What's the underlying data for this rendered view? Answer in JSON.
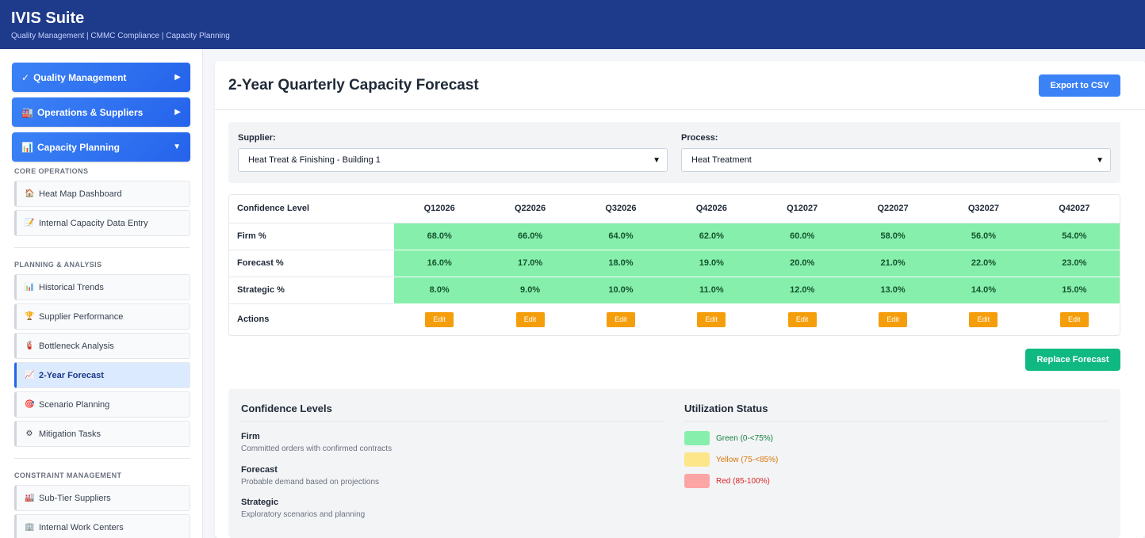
{
  "app": {
    "title": "IVIS Suite",
    "subtitle": "Quality Management | CMMC Compliance | Capacity Planning"
  },
  "sidebar": {
    "main_items": [
      {
        "icon": "✓",
        "label": "Quality Management",
        "arrow": "▶"
      },
      {
        "icon": "🏭",
        "label": "Operations & Suppliers",
        "arrow": "▶"
      },
      {
        "icon": "📊",
        "label": "Capacity Planning",
        "arrow": "▼"
      }
    ],
    "sections": [
      {
        "title": "CORE OPERATIONS",
        "items": [
          {
            "icon": "🏠",
            "label": "Heat Map Dashboard"
          },
          {
            "icon": "📝",
            "label": "Internal Capacity Data Entry"
          }
        ]
      },
      {
        "title": "PLANNING & ANALYSIS",
        "items": [
          {
            "icon": "📊",
            "label": "Historical Trends"
          },
          {
            "icon": "🏆",
            "label": "Supplier Performance"
          },
          {
            "icon": "🧯",
            "label": "Bottleneck Analysis"
          },
          {
            "icon": "📈",
            "label": "2-Year Forecast"
          },
          {
            "icon": "🎯",
            "label": "Scenario Planning"
          },
          {
            "icon": "⚙",
            "label": "Mitigation Tasks"
          }
        ]
      },
      {
        "title": "CONSTRAINT MANAGEMENT",
        "items": [
          {
            "icon": "🏭",
            "label": "Sub-Tier Suppliers"
          },
          {
            "icon": "🏢",
            "label": "Internal Work Centers"
          }
        ]
      }
    ]
  },
  "main": {
    "title": "2-Year Quarterly Capacity Forecast",
    "export_label": "Export to CSV",
    "replace_label": "Replace Forecast",
    "filters": {
      "supplier_label": "Supplier:",
      "supplier_value": "Heat Treat & Finishing - Building 1",
      "process_label": "Process:",
      "process_value": "Heat Treatment"
    },
    "table": {
      "header": "Confidence Level",
      "quarters": [
        "Q12026",
        "Q22026",
        "Q32026",
        "Q42026",
        "Q12027",
        "Q22027",
        "Q32027",
        "Q42027"
      ],
      "rows": [
        {
          "label": "Firm %",
          "values": [
            "68.0%",
            "66.0%",
            "64.0%",
            "62.0%",
            "60.0%",
            "58.0%",
            "56.0%",
            "54.0%"
          ]
        },
        {
          "label": "Forecast %",
          "values": [
            "16.0%",
            "17.0%",
            "18.0%",
            "19.0%",
            "20.0%",
            "21.0%",
            "22.0%",
            "23.0%"
          ]
        },
        {
          "label": "Strategic %",
          "values": [
            "8.0%",
            "9.0%",
            "10.0%",
            "11.0%",
            "12.0%",
            "13.0%",
            "14.0%",
            "15.0%"
          ]
        }
      ],
      "actions_label": "Actions",
      "edit_label": "Edit"
    },
    "legend": {
      "confidence_title": "Confidence Levels",
      "confidence_items": [
        {
          "name": "Firm",
          "desc": "Committed orders with confirmed contracts"
        },
        {
          "name": "Forecast",
          "desc": "Probable demand based on projections"
        },
        {
          "name": "Strategic",
          "desc": "Exploratory scenarios and planning"
        }
      ],
      "status_title": "Utilization Status",
      "status_items": [
        {
          "label": "Green (0-<75%)",
          "color": "#86efac",
          "text_color": "#15803d"
        },
        {
          "label": "Yellow (75-<85%)",
          "color": "#fde68a",
          "text_color": "#d97706"
        },
        {
          "label": "Red (85-100%)",
          "color": "#fca5a5",
          "text_color": "#dc2626"
        }
      ]
    }
  }
}
